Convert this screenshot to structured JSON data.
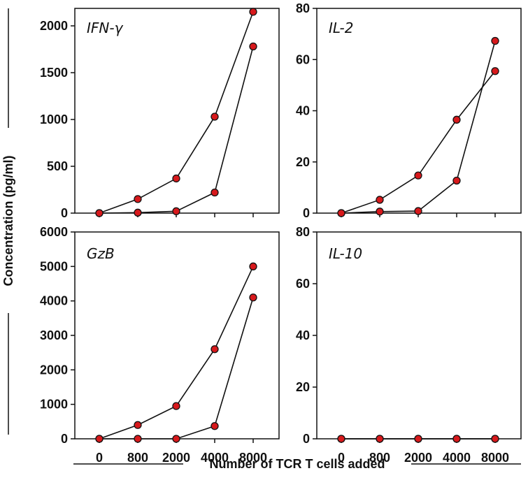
{
  "figure": {
    "ylabel": "Concentration (pg/ml)",
    "xlabel": "Number of TCR T cells added"
  },
  "chart_data": [
    {
      "type": "line",
      "title": "IFN-γ",
      "categories": [
        "0",
        "800",
        "2000",
        "4000",
        "8000"
      ],
      "ylim": [
        0,
        2000
      ],
      "yticks": [
        0,
        500,
        1000,
        1500,
        2000
      ],
      "series": [
        {
          "values": [
            0,
            150,
            370,
            1030,
            2150
          ]
        },
        {
          "values": [
            0,
            5,
            20,
            220,
            1780
          ]
        }
      ]
    },
    {
      "type": "line",
      "title": "IL-2",
      "categories": [
        "0",
        "800",
        "2000",
        "4000",
        "8000"
      ],
      "ylim": [
        0,
        80
      ],
      "yticks": [
        0,
        20,
        40,
        60,
        80
      ],
      "series": [
        {
          "values": [
            0,
            5.2,
            14.7,
            36.5,
            55.5
          ]
        },
        {
          "values": [
            0,
            0.6,
            0.8,
            12.7,
            67.3
          ]
        }
      ]
    },
    {
      "type": "line",
      "title": "GzB",
      "categories": [
        "0",
        "800",
        "2000",
        "4000",
        "8000"
      ],
      "ylim": [
        0,
        6000
      ],
      "yticks": [
        0,
        1000,
        2000,
        3000,
        4000,
        5000,
        6000
      ],
      "series": [
        {
          "values": [
            0,
            400,
            950,
            2600,
            5000
          ]
        },
        {
          "values": [
            0,
            0,
            0,
            370,
            4100
          ]
        }
      ]
    },
    {
      "type": "line",
      "title": "IL-10",
      "categories": [
        "0",
        "800",
        "2000",
        "4000",
        "8000"
      ],
      "ylim": [
        0,
        80
      ],
      "yticks": [
        0,
        20,
        40,
        60,
        80
      ],
      "series": [
        {
          "values": [
            0,
            0,
            0,
            0,
            0
          ]
        },
        {
          "values": [
            0,
            0,
            0,
            0,
            0
          ]
        }
      ]
    }
  ],
  "style": {
    "marker_fill": "#d7191c",
    "line_color": "#111111"
  }
}
